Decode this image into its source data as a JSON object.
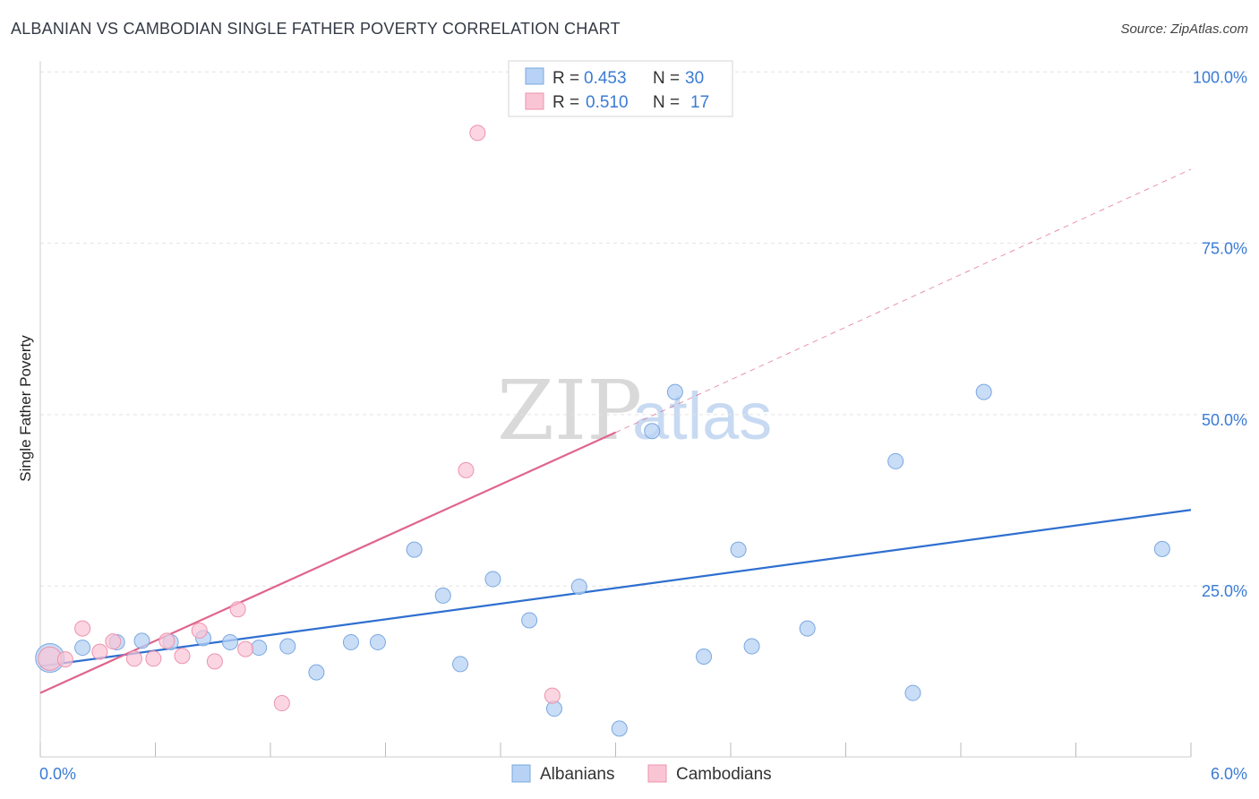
{
  "header": {
    "title": "ALBANIAN VS CAMBODIAN SINGLE FATHER POVERTY CORRELATION CHART",
    "source": "Source: ZipAtlas.com"
  },
  "watermark": {
    "part1": "ZIP",
    "part2": "atlas"
  },
  "legend": {
    "rows": [
      {
        "r_label": "R =",
        "r_value": "0.453",
        "n_label": "N =",
        "n_value": "30"
      },
      {
        "r_label": "R =",
        "r_value": "0.510",
        "n_label": "N =",
        "n_value": "17"
      }
    ]
  },
  "bottom_legend": {
    "albanians": "Albanians",
    "cambodians": "Cambodians"
  },
  "colors": {
    "albanian_fill": "#b7d2f4",
    "albanian_stroke": "#7aa8e0",
    "albanian_line": "#2f6fd0",
    "cambodian_fill": "#f9c5d5",
    "cambodian_stroke": "#ec93ad",
    "cambodian_line": "#e0648c",
    "tick_text": "#3a7bd5",
    "grid": "#e3e3e3"
  },
  "chart_data": {
    "type": "scatter",
    "title": "ALBANIAN VS CAMBODIAN SINGLE FATHER POVERTY CORRELATION CHART",
    "xlabel": "",
    "ylabel": "Single Father Poverty",
    "xlim": [
      0,
      6
    ],
    "ylim": [
      0,
      100
    ],
    "x_tick_labels": [
      "0.0%",
      "6.0%"
    ],
    "y_ticks": [
      25,
      50,
      75,
      100
    ],
    "y_tick_labels": [
      "25.0%",
      "50.0%",
      "75.0%",
      "100.0%"
    ],
    "grid": true,
    "series": [
      {
        "name": "Albanians",
        "r": 0.453,
        "n": 30,
        "points": [
          {
            "x": 0.05,
            "y": 14.5,
            "big": true
          },
          {
            "x": 0.22,
            "y": 16.0
          },
          {
            "x": 0.4,
            "y": 16.8
          },
          {
            "x": 0.53,
            "y": 17.0
          },
          {
            "x": 0.68,
            "y": 16.8
          },
          {
            "x": 0.85,
            "y": 17.4
          },
          {
            "x": 0.99,
            "y": 16.8
          },
          {
            "x": 1.14,
            "y": 16.0
          },
          {
            "x": 1.29,
            "y": 16.2
          },
          {
            "x": 1.44,
            "y": 12.4
          },
          {
            "x": 1.62,
            "y": 16.8
          },
          {
            "x": 1.76,
            "y": 16.8
          },
          {
            "x": 1.95,
            "y": 30.3
          },
          {
            "x": 2.1,
            "y": 23.6
          },
          {
            "x": 2.19,
            "y": 13.6
          },
          {
            "x": 2.36,
            "y": 26.0
          },
          {
            "x": 2.55,
            "y": 20.0
          },
          {
            "x": 2.68,
            "y": 7.1
          },
          {
            "x": 2.81,
            "y": 24.9
          },
          {
            "x": 3.02,
            "y": 4.2
          },
          {
            "x": 3.19,
            "y": 47.6
          },
          {
            "x": 3.31,
            "y": 53.3
          },
          {
            "x": 3.46,
            "y": 14.7
          },
          {
            "x": 3.64,
            "y": 30.3
          },
          {
            "x": 3.71,
            "y": 16.2
          },
          {
            "x": 4.0,
            "y": 18.8
          },
          {
            "x": 4.46,
            "y": 43.2
          },
          {
            "x": 4.55,
            "y": 9.4
          },
          {
            "x": 4.92,
            "y": 53.3
          },
          {
            "x": 5.85,
            "y": 30.4
          }
        ],
        "trend": {
          "x0": 0,
          "y0": 13.3,
          "x1": 6,
          "y1": 36.1
        }
      },
      {
        "name": "Cambodians",
        "r": 0.51,
        "n": 17,
        "points": [
          {
            "x": 0.05,
            "y": 14.4,
            "big": true
          },
          {
            "x": 0.13,
            "y": 14.3
          },
          {
            "x": 0.22,
            "y": 18.8
          },
          {
            "x": 0.31,
            "y": 15.4
          },
          {
            "x": 0.38,
            "y": 16.9
          },
          {
            "x": 0.49,
            "y": 14.4
          },
          {
            "x": 0.59,
            "y": 14.4
          },
          {
            "x": 0.66,
            "y": 17.0
          },
          {
            "x": 0.74,
            "y": 14.8
          },
          {
            "x": 0.83,
            "y": 18.5
          },
          {
            "x": 0.91,
            "y": 14.0
          },
          {
            "x": 1.03,
            "y": 21.6
          },
          {
            "x": 1.07,
            "y": 15.8
          },
          {
            "x": 1.26,
            "y": 7.9
          },
          {
            "x": 2.22,
            "y": 41.9
          },
          {
            "x": 2.28,
            "y": 91.1
          },
          {
            "x": 2.67,
            "y": 9.0
          }
        ],
        "trend": {
          "x0": 0,
          "y0": 9.4,
          "x1": 3.0,
          "y1": 47.4
        },
        "trend_dashed": {
          "x0": 3.0,
          "y0": 47.4,
          "x1": 6,
          "y1": 85.8
        }
      }
    ]
  }
}
